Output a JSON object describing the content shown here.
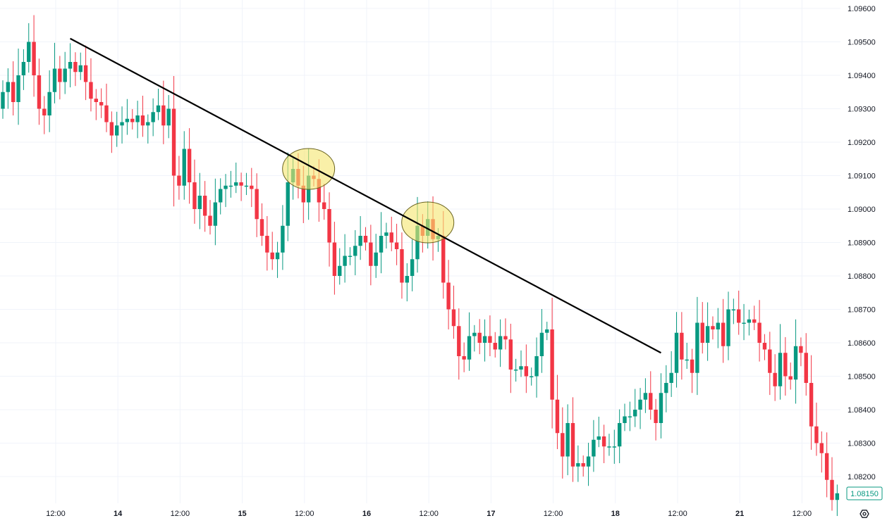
{
  "chart_data": {
    "type": "candlestick",
    "title": "",
    "interval": "1 hour",
    "ylim": [
      1.0812,
      1.0962
    ],
    "y_ticks": [
      "1.09600",
      "1.09500",
      "1.09400",
      "1.09300",
      "1.09200",
      "1.09100",
      "1.09000",
      "1.08900",
      "1.08800",
      "1.08700",
      "1.08600",
      "1.08500",
      "1.08400",
      "1.08300",
      "1.08200"
    ],
    "x_ticks": [
      {
        "label": "12:00",
        "candle": 10.2,
        "day": false
      },
      {
        "label": "14",
        "candle": 22.2,
        "day": true
      },
      {
        "label": "12:00",
        "candle": 34.2,
        "day": false
      },
      {
        "label": "15",
        "candle": 46.2,
        "day": true
      },
      {
        "label": "12:00",
        "candle": 58.2,
        "day": false
      },
      {
        "label": "16",
        "candle": 70.2,
        "day": true
      },
      {
        "label": "12:00",
        "candle": 82.2,
        "day": false
      },
      {
        "label": "17",
        "candle": 94.2,
        "day": true
      },
      {
        "label": "12:00",
        "candle": 106.2,
        "day": false
      },
      {
        "label": "18",
        "candle": 118.2,
        "day": true
      },
      {
        "label": "12:00",
        "candle": 130.2,
        "day": false
      },
      {
        "label": "21",
        "candle": 142.2,
        "day": true
      },
      {
        "label": "12:00",
        "candle": 154.2,
        "day": false
      }
    ],
    "first_open": 1.093,
    "closes": [
      1.0935,
      1.0938,
      1.0932,
      1.094,
      1.0944,
      1.095,
      1.094,
      1.093,
      1.0928,
      1.0935,
      1.0942,
      1.0938,
      1.0942,
      1.0944,
      1.0941,
      1.0943,
      1.0938,
      1.0933,
      1.0932,
      1.0931,
      1.0926,
      1.0922,
      1.0925,
      1.0926,
      1.0927,
      1.0926,
      1.0928,
      1.0925,
      1.0926,
      1.0929,
      1.0931,
      1.0925,
      1.093,
      1.091,
      1.0907,
      1.0918,
      1.0908,
      1.09,
      1.0904,
      1.0898,
      1.0895,
      1.0902,
      1.0906,
      1.0907,
      1.0907,
      1.0908,
      1.0907,
      1.0907,
      1.0906,
      1.0897,
      1.0892,
      1.0887,
      1.0885,
      1.0887,
      1.0895,
      1.0908,
      1.0912,
      1.0907,
      1.0902,
      1.091,
      1.0909,
      1.0902,
      1.09,
      1.089,
      1.088,
      1.0883,
      1.0886,
      1.0886,
      1.0889,
      1.0892,
      1.089,
      1.0883,
      1.0887,
      1.0892,
      1.0893,
      1.089,
      1.0888,
      1.0878,
      1.088,
      1.0885,
      1.0895,
      1.0892,
      1.0897,
      1.0891,
      1.0892,
      1.0878,
      1.087,
      1.0865,
      1.0856,
      1.0855,
      1.0862,
      1.0863,
      1.086,
      1.0862,
      1.086,
      1.0858,
      1.0862,
      1.0861,
      1.0852,
      1.0852,
      1.0853,
      1.085,
      1.085,
      1.0856,
      1.0863,
      1.0864,
      1.0843,
      1.0833,
      1.0826,
      1.0836,
      1.0823,
      1.0824,
      1.0823,
      1.0826,
      1.0831,
      1.0832,
      1.0829,
      1.0829,
      1.0829,
      1.0836,
      1.0838,
      1.0838,
      1.084,
      1.0843,
      1.0845,
      1.084,
      1.0836,
      1.0845,
      1.0848,
      1.0851,
      1.0863,
      1.0855,
      1.0855,
      1.0851,
      1.0866,
      1.086,
      1.0865,
      1.0864,
      1.0866,
      1.0859,
      1.087,
      1.087,
      1.0866,
      1.0866,
      1.0867,
      1.0866,
      1.086,
      1.0858,
      1.0851,
      1.0847,
      1.0857,
      1.085,
      1.0849,
      1.0859,
      1.0857,
      1.0848,
      1.0835,
      1.083,
      1.0827,
      1.0819,
      1.0813,
      1.0815
    ],
    "trendline": {
      "start": {
        "candle": 13,
        "price": 1.0951
      },
      "end": {
        "candle": 127,
        "price": 1.0857
      }
    },
    "highlights": [
      {
        "candle": 59,
        "price": 1.0912
      },
      {
        "candle": 82,
        "price": 1.0896
      }
    ],
    "last_price": "1.08150",
    "colors": {
      "up": "#089981",
      "down": "#f23645",
      "grid": "#f0f3fa",
      "trendline": "#000000",
      "highlight": "#f5e66e",
      "price_label": "#089981"
    }
  },
  "settings_icon": "gear-icon"
}
